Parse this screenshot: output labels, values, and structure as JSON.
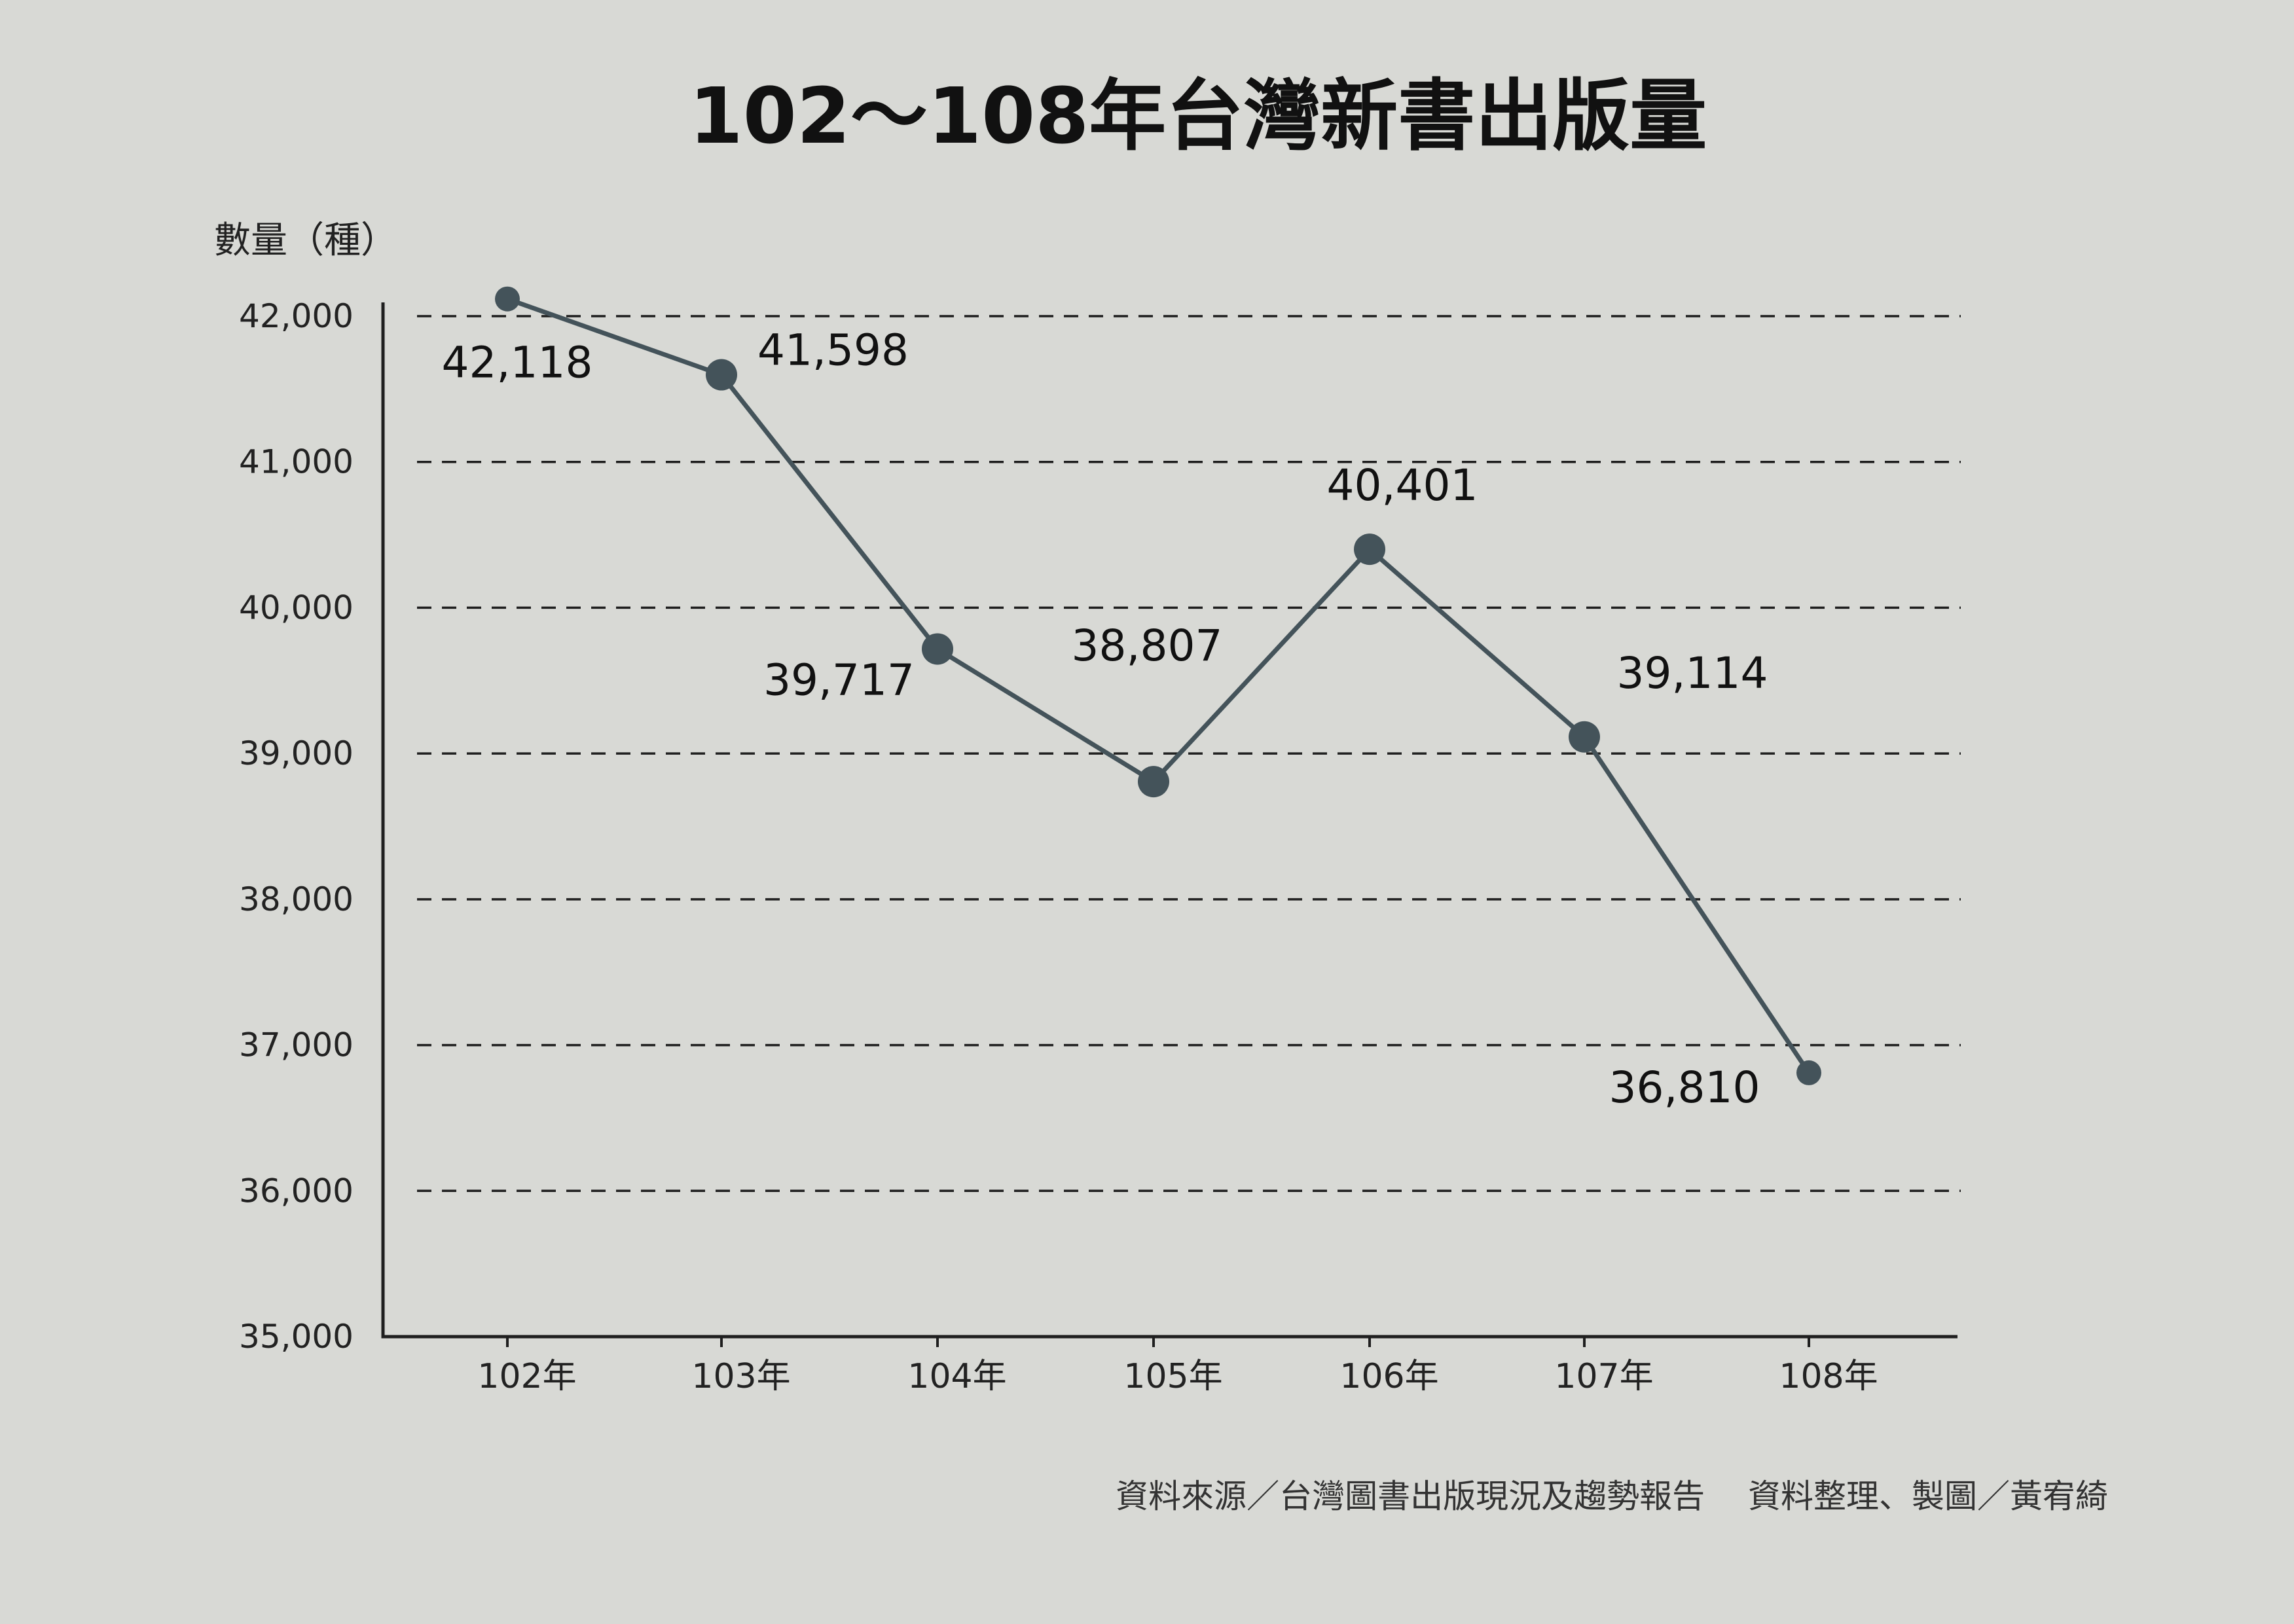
{
  "chart_data": {
    "type": "line",
    "title": "102～108年台灣新書出版量",
    "ylabel": "數量（種）",
    "xlabel": "",
    "categories": [
      "102年",
      "103年",
      "104年",
      "105年",
      "106年",
      "107年",
      "108年"
    ],
    "series": [
      {
        "values": [
          42118,
          41598,
          39717,
          38807,
          40401,
          39114,
          36810
        ],
        "labels": [
          "42,118",
          "41,598",
          "39,717",
          "38,807",
          "40,401",
          "39,114",
          "36,810"
        ]
      }
    ],
    "yticks": [
      {
        "value": 35000,
        "label": "35,000"
      },
      {
        "value": 36000,
        "label": "36,000"
      },
      {
        "value": 37000,
        "label": "37,000"
      },
      {
        "value": 38000,
        "label": "38,000"
      },
      {
        "value": 39000,
        "label": "39,000"
      },
      {
        "value": 40000,
        "label": "40,000"
      },
      {
        "value": 41000,
        "label": "41,000"
      },
      {
        "value": 42000,
        "label": "42,000"
      }
    ],
    "ylim": [
      35000,
      42000
    ],
    "grid": true,
    "line_color": "#44535a",
    "background_color": "#d8d9d5",
    "source_note": "資料來源／台灣圖書出版現況及趨勢報告　 資料整理、製圖／黃宥綺"
  }
}
